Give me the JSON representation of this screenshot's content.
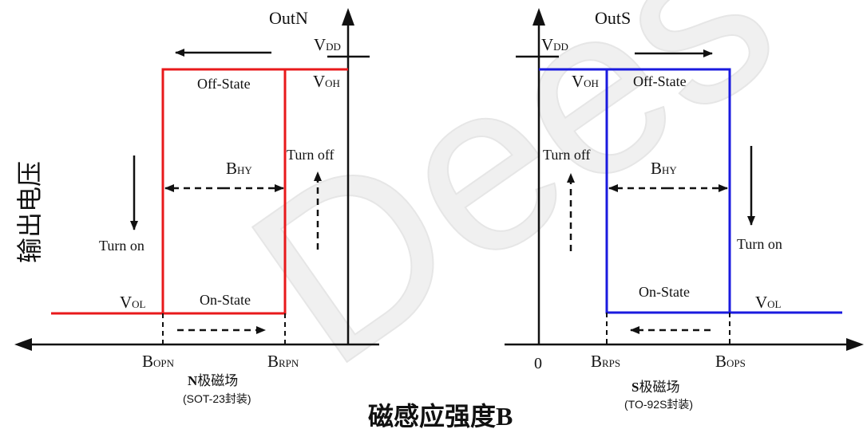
{
  "y_axis_label": "输出电压",
  "x_axis_label": "磁感应强度B",
  "watermark": "Dees",
  "colors": {
    "north_curve": "#e8191b",
    "south_curve": "#1a1adf",
    "axis": "#111111",
    "watermark": "#eeeeee"
  },
  "north": {
    "axis_title": "OutN",
    "vdd": {
      "main": "V",
      "sub": "DD"
    },
    "voh": {
      "main": "V",
      "sub": "OH"
    },
    "vol": {
      "main": "V",
      "sub": "OL"
    },
    "bhy": {
      "main": "B",
      "sub": "HY"
    },
    "bopn": {
      "main": "B",
      "sub": "OPN"
    },
    "brpn": {
      "main": "B",
      "sub": "RPN"
    },
    "off_state": "Off-State",
    "on_state": "On-State",
    "turn_on": "Turn on",
    "turn_off": "Turn off",
    "field_prefix": "N",
    "field_label": "极磁场",
    "package": "(SOT-23封装)"
  },
  "south": {
    "axis_title": "OutS",
    "origin": "0",
    "vdd": {
      "main": "V",
      "sub": "DD"
    },
    "voh": {
      "main": "V",
      "sub": "OH"
    },
    "vol": {
      "main": "V",
      "sub": "OL"
    },
    "bhy": {
      "main": "B",
      "sub": "HY"
    },
    "brps": {
      "main": "B",
      "sub": "RPS"
    },
    "bops": {
      "main": "B",
      "sub": "OPS"
    },
    "off_state": "Off-State",
    "on_state": "On-State",
    "turn_on": "Turn on",
    "turn_off": "Turn off",
    "field_prefix": "S",
    "field_label": "极磁场",
    "package": "(TO-92S封装)"
  }
}
